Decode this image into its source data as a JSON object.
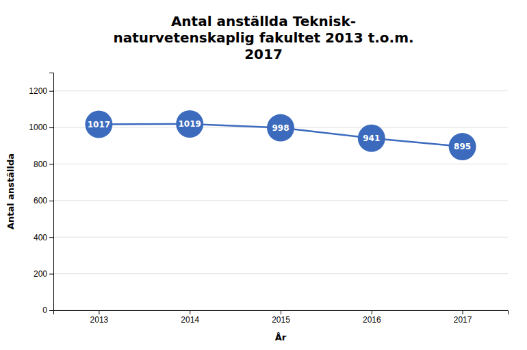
{
  "chart_data": {
    "type": "line",
    "title": "Antal anställda Teknisk-\nnaturvetenskaplig fakultet 2013 t.o.m.\n2017",
    "xlabel": "År",
    "ylabel": "Antal anställda",
    "x": [
      2013,
      2014,
      2015,
      2016,
      2017
    ],
    "values": [
      1017,
      1019,
      998,
      941,
      895
    ],
    "color": "#3C6BBE",
    "marker": "circle",
    "data_labels": true,
    "grid": true,
    "xlim": [
      2012.5,
      2017.5
    ],
    "xticks": [
      2013,
      2014,
      2015,
      2016,
      2017
    ],
    "ylim": [
      0,
      1300
    ],
    "yticks": [
      0,
      200,
      400,
      600,
      800,
      1000,
      1200
    ]
  }
}
